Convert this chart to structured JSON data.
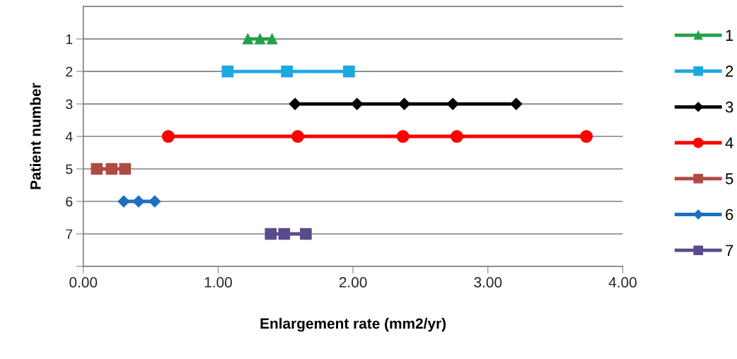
{
  "chart_data": {
    "type": "line",
    "xlabel": "Enlargement rate (mm2/yr)",
    "ylabel": "Patient number",
    "xlim": [
      0,
      4
    ],
    "xticks": [
      {
        "value": 0,
        "label": "0.00"
      },
      {
        "value": 1,
        "label": "1.00"
      },
      {
        "value": 2,
        "label": "2.00"
      },
      {
        "value": 3,
        "label": "3.00"
      },
      {
        "value": 4,
        "label": "4.00"
      }
    ],
    "ylim": [
      8,
      0
    ],
    "yticks": [
      1,
      2,
      3,
      4,
      5,
      6,
      7,
      {
        "value": 8,
        "label": null
      }
    ],
    "grid": "y",
    "legend": "right",
    "series": [
      {
        "name": "1",
        "color": "#23a04a",
        "marker": "triangle",
        "x": [
          1.22,
          1.31,
          1.4
        ],
        "values": [
          1,
          1,
          1
        ]
      },
      {
        "name": "2",
        "color": "#1ea8e0",
        "marker": "square",
        "x": [
          1.07,
          1.51,
          1.97
        ],
        "values": [
          2,
          2,
          2
        ]
      },
      {
        "name": "3",
        "color": "#000000",
        "marker": "diamond",
        "x": [
          1.57,
          2.03,
          2.38,
          2.74,
          3.21
        ],
        "values": [
          3,
          3,
          3,
          3,
          3
        ]
      },
      {
        "name": "4",
        "color": "#ff0000",
        "marker": "circle",
        "x": [
          0.63,
          1.59,
          2.37,
          2.77,
          3.73
        ],
        "values": [
          4,
          4,
          4,
          4,
          4
        ]
      },
      {
        "name": "5",
        "color": "#b04a45",
        "marker": "square",
        "x": [
          0.1,
          0.21,
          0.31
        ],
        "values": [
          5,
          5,
          5
        ]
      },
      {
        "name": "6",
        "color": "#1f6fc0",
        "marker": "diamond",
        "x": [
          0.3,
          0.41,
          0.53
        ],
        "values": [
          6,
          6,
          6
        ]
      },
      {
        "name": "7",
        "color": "#5a4a8a",
        "marker": "square",
        "x": [
          1.39,
          1.49,
          1.65
        ],
        "values": [
          7,
          7,
          7
        ]
      }
    ]
  }
}
